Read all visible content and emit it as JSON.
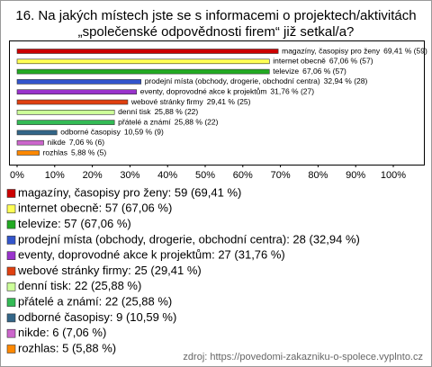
{
  "chart_data": {
    "type": "hbar",
    "title": [
      "16. Na jakých místech jste se s informacemi o projektech/aktivitách",
      "„společenské odpovědnosti firem“ již setkal/a?"
    ],
    "categories": [
      "magazíny, časopisy pro ženy",
      "internet obecně",
      "televize",
      "prodejní místa (obchody, drogerie, obchodní centra)",
      "eventy, doprovodné akce k projektům",
      "webové stránky firmy",
      "denní tisk",
      "přátelé a známí",
      "odborné časopisy",
      "nikde",
      "rozhlas"
    ],
    "values": [
      69.41,
      67.06,
      67.06,
      32.94,
      31.76,
      29.41,
      25.88,
      25.88,
      10.59,
      7.06,
      5.88
    ],
    "value_labels": [
      "69,41 % (59)",
      "67,06 % (57)",
      "67,06 % (57)",
      "32,94 % (28)",
      "31,76 % (27)",
      "29,41 % (25)",
      "25,88 % (22)",
      "25,88 % (22)",
      "10,59 % (9)",
      "7,06 % (6)",
      "5,88 % (5)"
    ],
    "colors": [
      "#cc0000",
      "#ffff55",
      "#22aa22",
      "#3355cc",
      "#9933cc",
      "#e04010",
      "#ccff99",
      "#33bb55",
      "#336688",
      "#cc66cc",
      "#ff8800"
    ],
    "legend_labels": [
      "magazíny, časopisy pro ženy: 59 (69,41 %)",
      "internet obecně: 57 (67,06 %)",
      "televize: 57 (67,06 %)",
      "prodejní místa (obchody, drogerie, obchodní centra): 28 (32,94 %)",
      "eventy, doprovodné akce k projektům: 27 (31,76 %)",
      "webové stránky firmy: 25 (29,41 %)",
      "denní tisk: 22 (25,88 %)",
      "přátelé a známí: 22 (25,88 %)",
      "odborné časopisy: 9 (10,59 %)",
      "nikde: 6 (7,06 %)",
      "rozhlas: 5 (5,88 %)"
    ],
    "xlim": [
      0,
      100
    ],
    "xticks": [
      {
        "value": 0,
        "label": "0%"
      },
      {
        "value": 10,
        "label": "10%"
      },
      {
        "value": 20,
        "label": "20%"
      },
      {
        "value": 30,
        "label": "30%"
      },
      {
        "value": 40,
        "label": "40%"
      },
      {
        "value": 50,
        "label": "50%"
      },
      {
        "value": 60,
        "label": "60%"
      },
      {
        "value": 70,
        "label": "70%"
      },
      {
        "value": 80,
        "label": "80%"
      },
      {
        "value": 90,
        "label": "90%"
      },
      {
        "value": 100,
        "label": "100%"
      }
    ],
    "source": "zdroj: https://povedomi-zakazniku-o-spolece.vyplnto.cz"
  }
}
